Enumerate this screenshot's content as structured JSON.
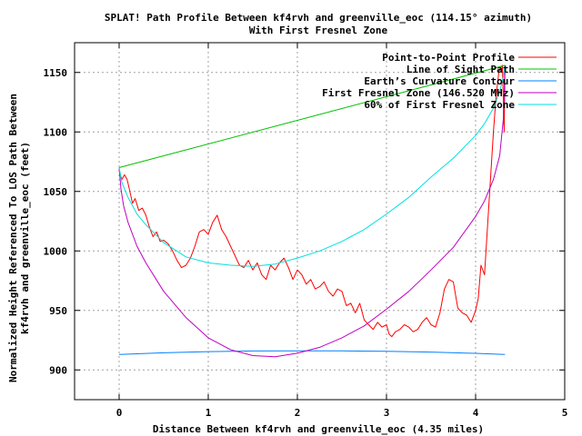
{
  "chart_data": {
    "type": "line",
    "title": "SPLAT! Path Profile Between kf4rvh and greenville_eoc (114.15° azimuth)",
    "subtitle": "With First Fresnel Zone",
    "xlabel": "Distance Between kf4rvh and greenville_eoc (4.35 miles)",
    "ylabel": "Normalized Height Referenced To LOS Path Between",
    "ylabel2": "kf4rvh and greenville_eoc (feet)",
    "xlim": [
      -0.5,
      5
    ],
    "ylim": [
      875,
      1175
    ],
    "xticks": [
      0,
      1,
      2,
      3,
      4,
      5
    ],
    "yticks": [
      900,
      950,
      1000,
      1050,
      1100,
      1150
    ],
    "xtick_labels": [
      "0",
      "1",
      "2",
      "3",
      "4",
      "5"
    ],
    "ytick_labels": [
      "900",
      "950",
      "1000",
      "1050",
      "1100",
      "1150"
    ],
    "grid": true,
    "legend_position": "top-right",
    "series": [
      {
        "name": "Point-to-Point Profile",
        "color": "#ff0000",
        "x": [
          0.0,
          0.03,
          0.06,
          0.09,
          0.12,
          0.15,
          0.18,
          0.22,
          0.26,
          0.3,
          0.34,
          0.38,
          0.42,
          0.46,
          0.5,
          0.55,
          0.6,
          0.65,
          0.7,
          0.75,
          0.8,
          0.85,
          0.9,
          0.95,
          1.0,
          1.05,
          1.1,
          1.15,
          1.2,
          1.25,
          1.3,
          1.35,
          1.4,
          1.45,
          1.5,
          1.55,
          1.6,
          1.65,
          1.7,
          1.75,
          1.8,
          1.85,
          1.9,
          1.95,
          2.0,
          2.05,
          2.1,
          2.15,
          2.2,
          2.25,
          2.3,
          2.35,
          2.4,
          2.45,
          2.5,
          2.55,
          2.6,
          2.65,
          2.7,
          2.75,
          2.8,
          2.85,
          2.9,
          2.95,
          3.0,
          3.03,
          3.06,
          3.1,
          3.15,
          3.2,
          3.25,
          3.3,
          3.35,
          3.4,
          3.45,
          3.5,
          3.55,
          3.6,
          3.65,
          3.7,
          3.75,
          3.8,
          3.85,
          3.9,
          3.95,
          4.0,
          4.03,
          4.06,
          4.1,
          4.15,
          4.2,
          4.23,
          4.26,
          4.28,
          4.3,
          4.31,
          4.32,
          4.33
        ],
        "y": [
          1068,
          1060,
          1064,
          1060,
          1050,
          1040,
          1044,
          1034,
          1036,
          1030,
          1020,
          1012,
          1016,
          1008,
          1009,
          1006,
          1000,
          992,
          986,
          988,
          994,
          1004,
          1016,
          1018,
          1014,
          1024,
          1030,
          1018,
          1012,
          1004,
          996,
          988,
          986,
          992,
          984,
          990,
          980,
          976,
          988,
          984,
          990,
          994,
          986,
          976,
          984,
          980,
          972,
          976,
          968,
          970,
          974,
          966,
          962,
          968,
          966,
          954,
          956,
          948,
          956,
          942,
          938,
          934,
          940,
          936,
          938,
          930,
          928,
          932,
          934,
          938,
          936,
          932,
          934,
          940,
          944,
          938,
          936,
          948,
          968,
          976,
          974,
          952,
          948,
          946,
          940,
          950,
          960,
          988,
          980,
          1040,
          1100,
          1130,
          1150,
          1154,
          1156,
          1130,
          1100,
          1154
        ]
      },
      {
        "name": "Line of Sight Path",
        "color": "#00c000",
        "x": [
          0.0,
          4.33
        ],
        "y": [
          1070,
          1156
        ]
      },
      {
        "name": "Earth’s Curvature Contour",
        "color": "#0080ff",
        "x": [
          0.0,
          0.5,
          1.0,
          1.5,
          2.0,
          2.165,
          2.5,
          3.0,
          3.5,
          4.0,
          4.33
        ],
        "y": [
          913,
          914.4,
          915.4,
          915.9,
          916.1,
          916.1,
          916.0,
          915.7,
          915.0,
          913.9,
          913
        ]
      },
      {
        "name": "First Fresnel Zone (146.520 MHz)",
        "color": "#c000c0",
        "x": [
          0.0,
          0.02,
          0.05,
          0.1,
          0.2,
          0.3,
          0.5,
          0.75,
          1.0,
          1.25,
          1.5,
          1.75,
          2.0,
          2.25,
          2.5,
          2.75,
          3.0,
          3.25,
          3.5,
          3.75,
          4.0,
          4.1,
          4.2,
          4.27,
          4.31,
          4.33
        ],
        "y": [
          1070,
          1052,
          1038,
          1024,
          1004,
          990,
          966,
          944,
          927,
          917,
          912,
          911,
          914,
          919,
          927,
          937,
          951,
          966,
          984,
          1003,
          1029,
          1042,
          1060,
          1080,
          1110,
          1156
        ]
      },
      {
        "name": "60% of First Fresnel Zone",
        "color": "#00e0e0",
        "x": [
          0.0,
          0.03,
          0.06,
          0.1,
          0.2,
          0.3,
          0.5,
          0.75,
          1.0,
          1.25,
          1.5,
          1.75,
          2.0,
          2.25,
          2.5,
          2.75,
          3.0,
          3.25,
          3.5,
          3.75,
          4.0,
          4.1,
          4.2,
          4.27,
          4.31,
          4.33
        ],
        "y": [
          1070,
          1058,
          1052,
          1045,
          1031,
          1022,
          1007,
          995,
          990,
          988,
          987,
          989,
          994,
          1000,
          1008,
          1018,
          1031,
          1045,
          1062,
          1078,
          1097,
          1107,
          1120,
          1134,
          1146,
          1156
        ]
      }
    ]
  }
}
